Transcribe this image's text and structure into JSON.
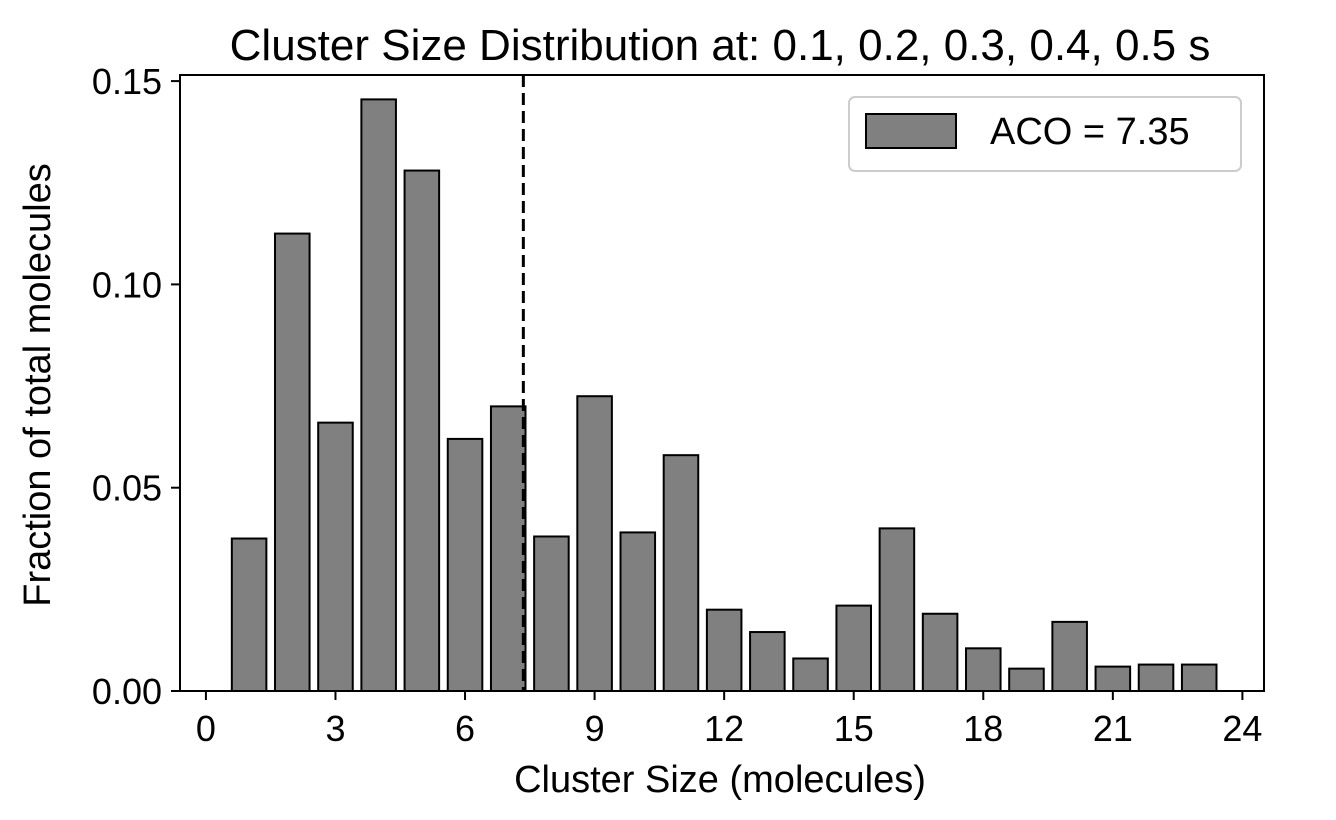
{
  "chart_data": {
    "type": "bar",
    "title": "Cluster Size Distribution at: 0.1, 0.2, 0.3, 0.4, 0.5 s",
    "xlabel": "Cluster Size (molecules)",
    "ylabel": "Fraction of total molecules",
    "x": [
      1,
      2,
      3,
      4,
      5,
      6,
      7,
      8,
      9,
      10,
      11,
      12,
      13,
      14,
      15,
      16,
      17,
      18,
      19,
      20,
      21,
      22,
      23
    ],
    "values": [
      0.0375,
      0.1125,
      0.066,
      0.1455,
      0.128,
      0.062,
      0.07,
      0.038,
      0.0725,
      0.039,
      0.058,
      0.02,
      0.0145,
      0.008,
      0.021,
      0.04,
      0.019,
      0.0105,
      0.0055,
      0.017,
      0.006,
      0.0065,
      0.0065
    ],
    "xlim": [
      -0.6,
      24.5
    ],
    "ylim": [
      0,
      0.1515
    ],
    "x_ticks": [
      "0",
      "3",
      "6",
      "9",
      "12",
      "15",
      "18",
      "21",
      "24"
    ],
    "y_ticks": [
      "0.00",
      "0.05",
      "0.10",
      "0.15"
    ],
    "bar_color": "#808080",
    "reference_line": {
      "x": 7.35,
      "style": "dashed",
      "color": "#000000"
    },
    "legend": {
      "label": "ACO = 7.35",
      "position": "top-right"
    },
    "grid": false
  }
}
